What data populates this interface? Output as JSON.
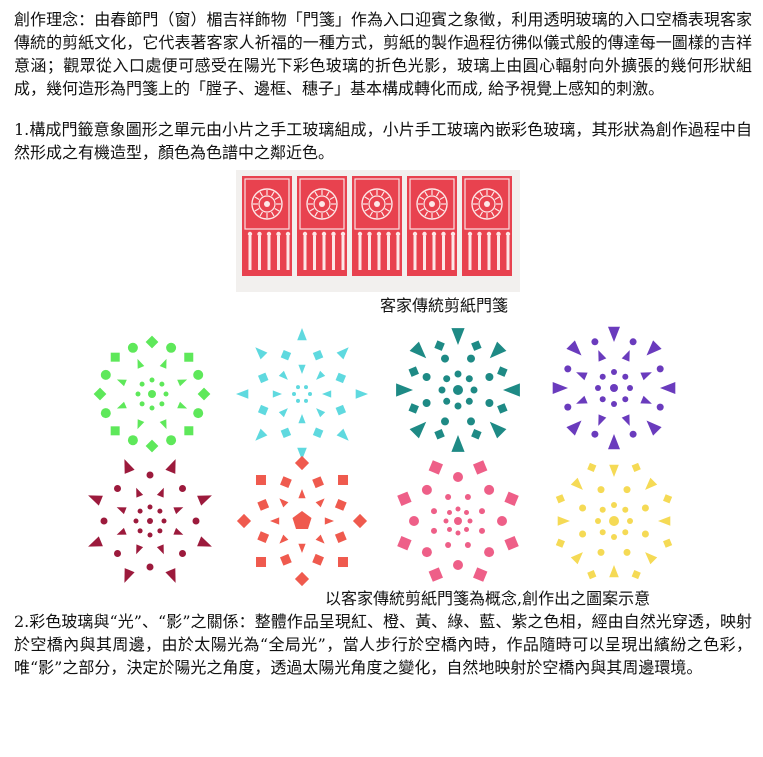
{
  "intro": "創作理念：由春節門（窗）楣吉祥飾物「門箋」作為入口迎賓之象徵，利用透明玻璃的入口空橋表現客家傳統的剪紙文化，它代表著客家人祈福的一種方式，剪紙的製作過程彷彿似儀式般的傳達每一圖樣的吉祥意涵；觀眾從入口處便可感受在陽光下彩色玻璃的折色光影，玻璃上由圓心輻射向外擴張的幾何形狀組成，幾何造形為門箋上的「膛子、邊框、穗子」基本構成轉化而成, 給予視覺上感知的刺激。",
  "point1": "1.構成門籤意象圖形之單元由小片之手工玻璃組成，小片手工玻璃內嵌彩色玻璃，其形狀為創作過程中自然形成之有機造型，顏色為色譜中之鄰近色。",
  "photo_caption": "客家傳統剪紙門箋",
  "patterns_caption": "以客家傳統剪紙門箋為概念,創作出之圖案示意",
  "point2": "2.彩色玻璃與“光”、“影”之關係：整體作品呈現紅、橙、黃、綠、藍、紫之色相，經由自然光穿透，映射於空橋內與其周邊，由於太陽光為“全局光”，當人步行於空橋內時，作品隨時可以呈現出繽紛之色彩，唯“影”之部分，決定於陽光之角度，透過太陽光角度之變化，自然地映射於空橋內與其周邊環境。",
  "photo_colors": {
    "paper": "#e8424f",
    "background": "#f2f0ee"
  },
  "patterns": [
    {
      "name": "green-pattern",
      "color": "#5ee85a",
      "style": "a"
    },
    {
      "name": "cyan-pattern",
      "color": "#5fd9df",
      "style": "b"
    },
    {
      "name": "teal-pattern",
      "color": "#1e8a85",
      "style": "c"
    },
    {
      "name": "purple-pattern",
      "color": "#6a3bbd",
      "style": "d"
    },
    {
      "name": "maroon-pattern",
      "color": "#9c1a3c",
      "style": "e"
    },
    {
      "name": "coral-pattern",
      "color": "#ef5a4e",
      "style": "f"
    },
    {
      "name": "pink-pattern",
      "color": "#ee5f88",
      "style": "g"
    },
    {
      "name": "yellow-pattern",
      "color": "#f5da55",
      "style": "h"
    }
  ]
}
